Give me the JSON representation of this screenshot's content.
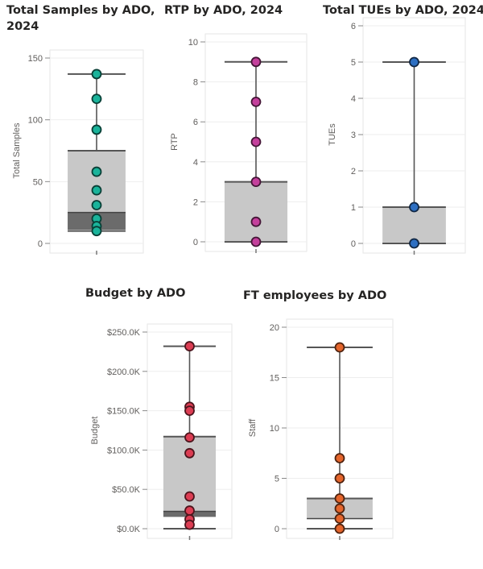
{
  "chart_data": [
    {
      "id": "samples",
      "type": "boxplot",
      "title_lines": [
        "Total Samples by ADO,",
        "2024"
      ],
      "ylabel": "Total Samples",
      "ylim": [
        0,
        150
      ],
      "ticks": [
        0,
        50,
        100,
        150
      ],
      "tick_labels": [
        "0",
        "50",
        "100",
        "150"
      ],
      "whisker": [
        10,
        137
      ],
      "q1": 11,
      "q3": 75,
      "median": 25,
      "points": [
        137,
        117,
        92,
        58,
        43,
        31,
        20,
        14,
        10
      ],
      "color": "#1ab39a"
    },
    {
      "id": "rtp",
      "type": "boxplot",
      "title_lines": [
        "RTP by ADO, 2024"
      ],
      "ylabel": "RTP",
      "ylim": [
        0,
        10
      ],
      "ticks": [
        0,
        2,
        4,
        6,
        8,
        10
      ],
      "tick_labels": [
        "0",
        "2",
        "4",
        "6",
        "8",
        "10"
      ],
      "whisker": [
        0,
        9
      ],
      "q1": 0,
      "q3": 3,
      "median": 0,
      "points": [
        9,
        7,
        5,
        3,
        1,
        0
      ],
      "color": "#c4409c"
    },
    {
      "id": "tues",
      "type": "boxplot",
      "title_lines": [
        "Total TUEs by ADO, 2024"
      ],
      "ylabel": "TUEs",
      "ylim": [
        0,
        6
      ],
      "ticks": [
        0,
        1,
        2,
        3,
        4,
        5,
        6
      ],
      "tick_labels": [
        "0",
        "1",
        "2",
        "3",
        "4",
        "5",
        "6"
      ],
      "whisker": [
        0,
        5
      ],
      "q1": 0,
      "q3": 1,
      "median": 0,
      "points": [
        5,
        1,
        0
      ],
      "color": "#2d6fc2"
    },
    {
      "id": "budget",
      "type": "boxplot",
      "title_lines": [
        "Budget by ADO"
      ],
      "ylabel": "Budget",
      "ylim": [
        0,
        250000
      ],
      "ticks": [
        0,
        50000,
        100000,
        150000,
        200000,
        250000
      ],
      "tick_labels": [
        "$0.0K",
        "$50.0K",
        "$100.0K",
        "$150.0K",
        "$200.0K",
        "$250.0K"
      ],
      "whisker": [
        0,
        232000
      ],
      "q1": 15000,
      "q3": 117000,
      "median": 22000,
      "points": [
        232000,
        155000,
        150000,
        116000,
        96000,
        41000,
        23000,
        12000,
        5000
      ],
      "color": "#dc3d53"
    },
    {
      "id": "staff",
      "type": "boxplot",
      "title_lines": [
        "FT employees by ADO"
      ],
      "ylabel": "Staff",
      "ylim": [
        0,
        20
      ],
      "ticks": [
        0,
        5,
        10,
        15,
        20
      ],
      "tick_labels": [
        "0",
        "5",
        "10",
        "15",
        "20"
      ],
      "whisker": [
        0,
        18
      ],
      "q1": 1,
      "q3": 3,
      "median": 1,
      "points": [
        18,
        7,
        5,
        3,
        2,
        1,
        0
      ],
      "color": "#e4652c"
    }
  ]
}
